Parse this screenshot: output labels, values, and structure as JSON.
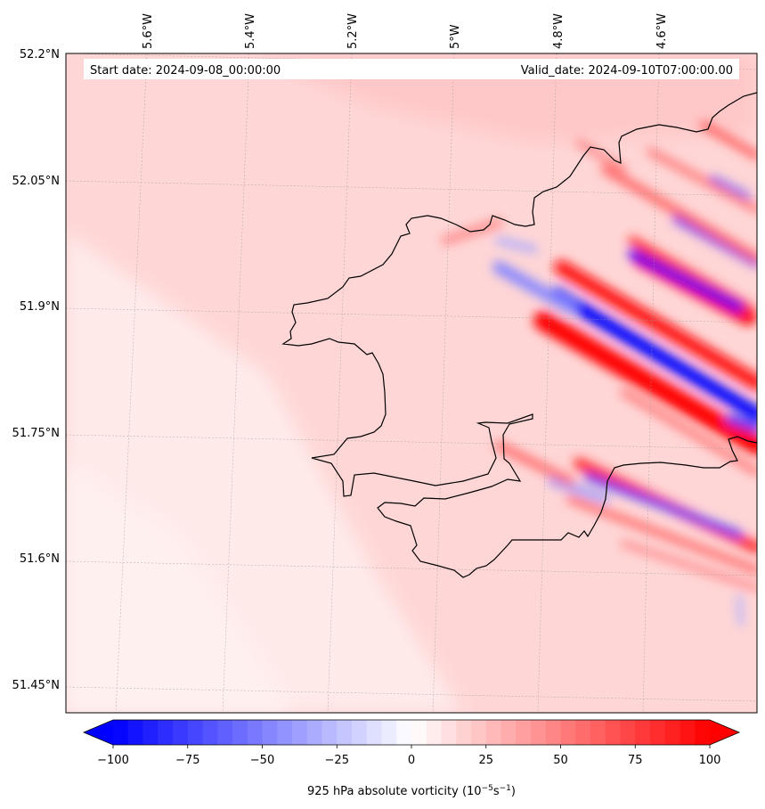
{
  "map": {
    "start_date": "Start date: 2024-09-08_00:00:00",
    "valid_date": "Valid_date: 2024-09-10T07:00:00.00",
    "lon_labels": [
      "5.6°W",
      "5.4°W",
      "5.2°W",
      "5°W",
      "4.8°W",
      "4.6°W"
    ],
    "lat_labels": [
      "52.2°N",
      "52.05°N",
      "51.9°N",
      "51.75°N",
      "51.6°N",
      "51.45°N"
    ]
  },
  "colorbar": {
    "title_main": "925 hPa absolute vorticity (10",
    "title_exp1": "−5",
    "title_mid": "s",
    "title_exp2": "−1",
    "title_end": ")",
    "ticks": [
      "−100",
      "−75",
      "−50",
      "−25",
      "0",
      "25",
      "50",
      "75",
      "100"
    ],
    "min": -100,
    "max": 100,
    "colors": {
      "negative_end": "#0000ff",
      "neutral": "#ffffff",
      "positive_end": "#ff0000"
    }
  }
}
